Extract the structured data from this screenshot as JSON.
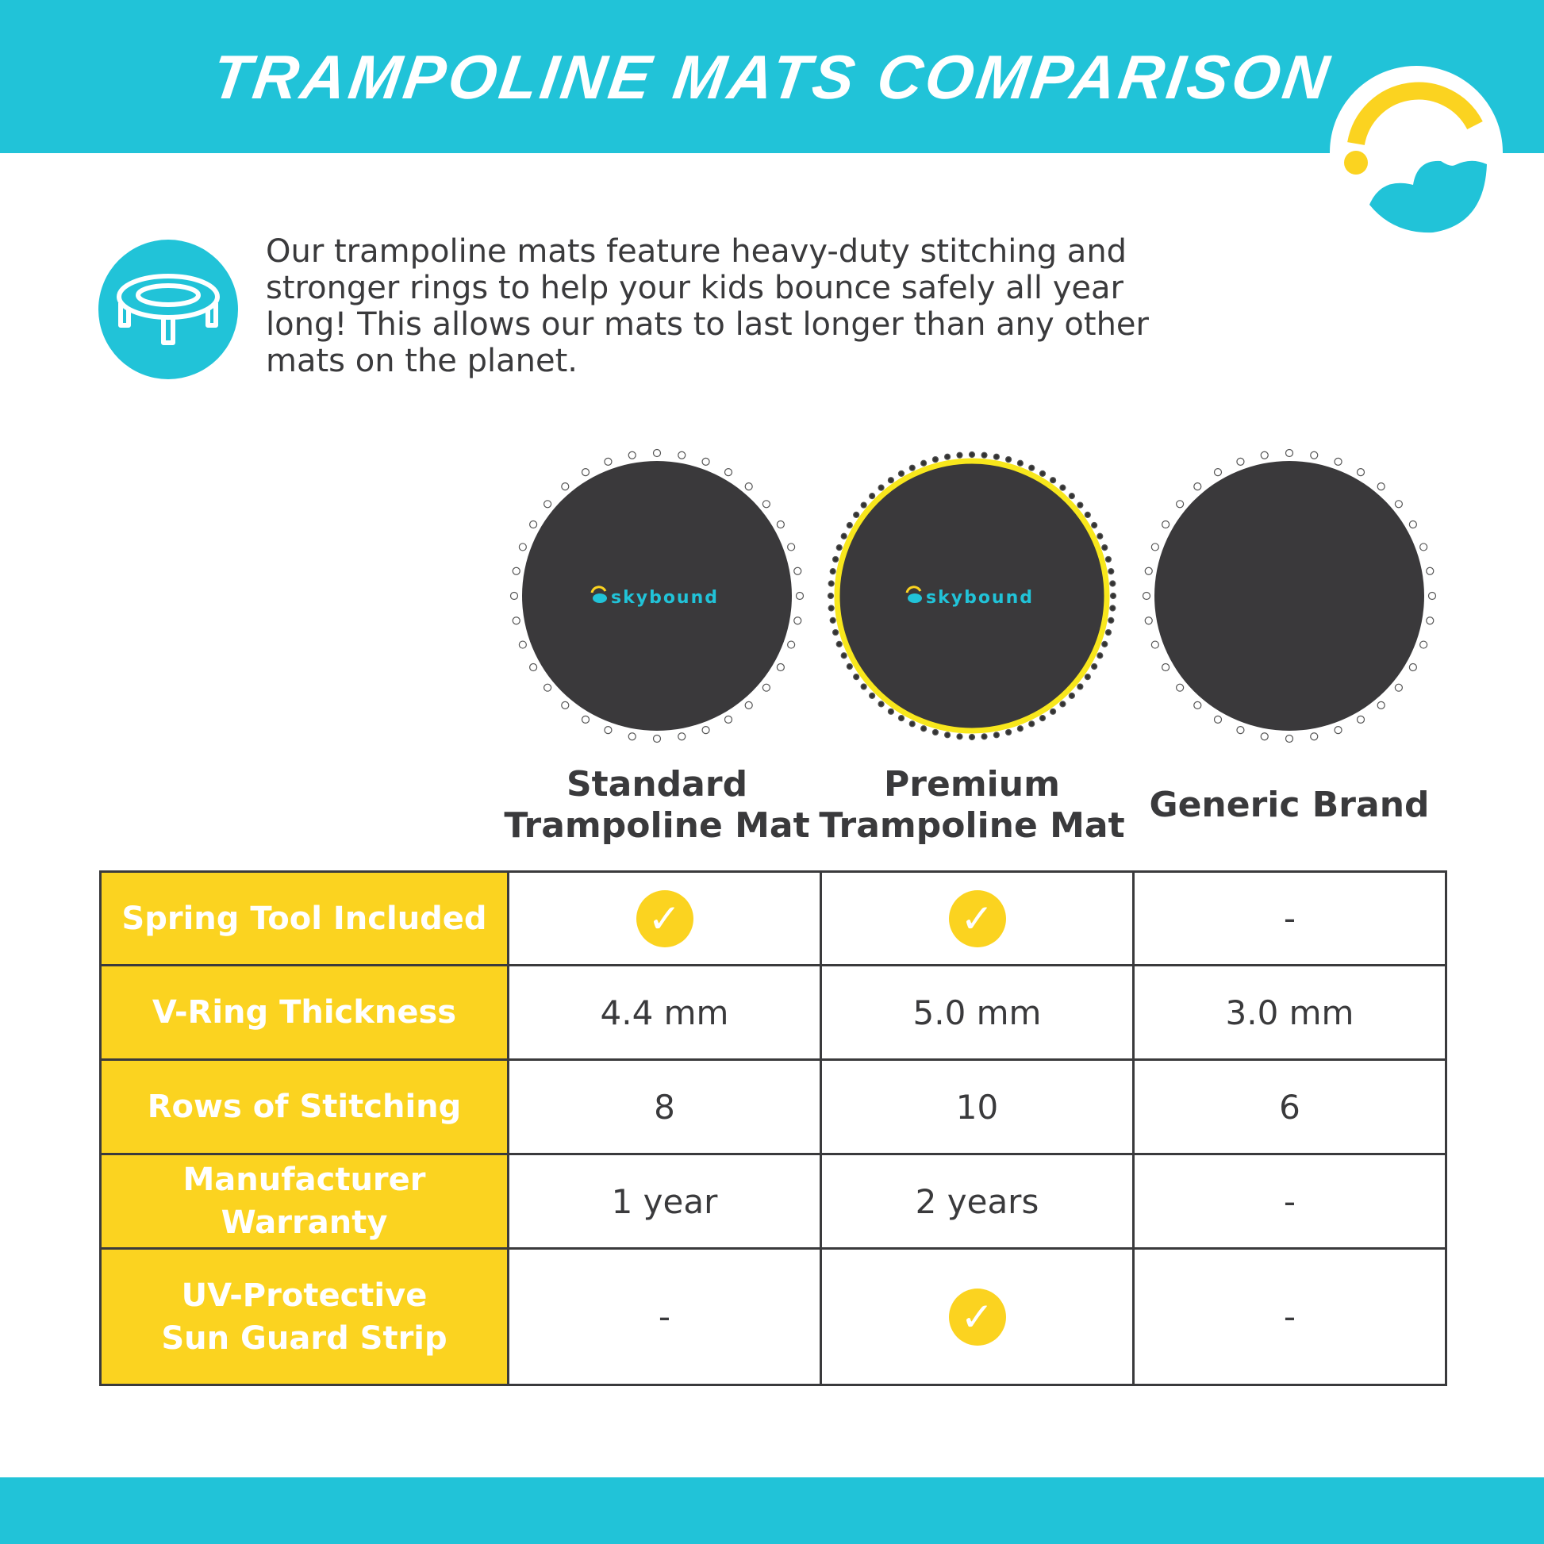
{
  "title": "TRAMPOLINE MATS COMPARISON",
  "intro": "Our trampoline mats feature heavy-duty stitching and stronger rings to help your kids bounce safely all year long! This allows our mats to last longer than any other mats on the planet.",
  "colors": {
    "brand_cyan": "#21c3d8",
    "brand_yellow": "#fbd320",
    "mat": "#3a393b"
  },
  "products": [
    {
      "name": "Standard Trampoline Mat",
      "line1": "Standard",
      "line2": "Trampoline Mat",
      "brand_mark": "skybound",
      "sun_guard": false
    },
    {
      "name": "Premium Trampoline Mat",
      "line1": "Premium",
      "line2": "Trampoline Mat",
      "brand_mark": "skybound",
      "sun_guard": true
    },
    {
      "name": "Generic Brand",
      "line1": "Generic Brand",
      "line2": "",
      "brand_mark": "",
      "sun_guard": false
    }
  ],
  "rows": [
    {
      "label": "Spring Tool Included",
      "values": [
        "check",
        "check",
        "-"
      ]
    },
    {
      "label": "V-Ring Thickness",
      "values": [
        "4.4 mm",
        "5.0 mm",
        "3.0 mm"
      ]
    },
    {
      "label": "Rows of Stitching",
      "values": [
        "8",
        "10",
        "6"
      ]
    },
    {
      "label": "Manufacturer Warranty",
      "values": [
        "1 year",
        "2 years",
        "-"
      ]
    },
    {
      "label": "UV-Protective\nSun Guard Strip",
      "label1": "UV-Protective",
      "label2": "Sun Guard Strip",
      "values": [
        "-",
        "check",
        "-"
      ]
    }
  ]
}
